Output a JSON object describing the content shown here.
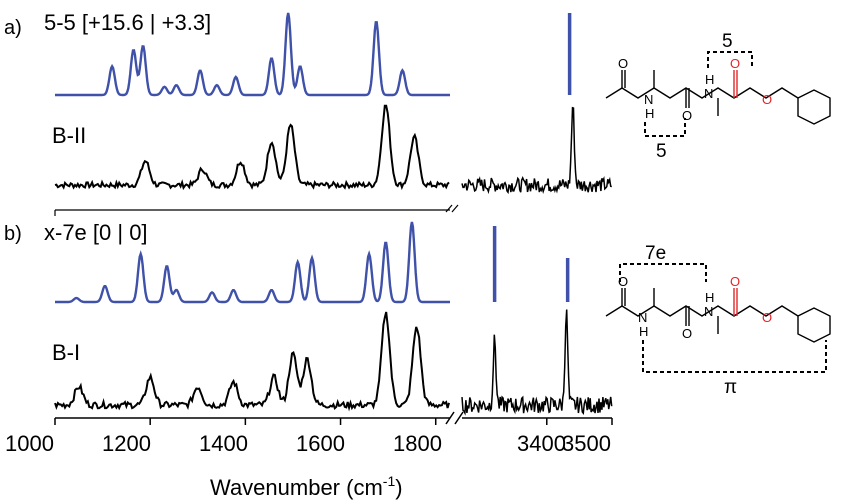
{
  "colors": {
    "calc": "#3f51a8",
    "exp": "#000000",
    "highlight": "#e0262b",
    "ink": "#000000"
  },
  "panels": [
    {
      "letter": "a)",
      "calc_label": "5-5 [+15.6 | +3.3]",
      "exp_label": "B-II",
      "bracket_label_top": "5",
      "bracket_label_bottom": "5"
    },
    {
      "letter": "b)",
      "calc_label": "x-7e [0 | 0]",
      "exp_label": "B-I",
      "bracket_label_top": "7e",
      "bracket_label_bottom": "π"
    }
  ],
  "axis": {
    "xlabel_main": "Wavenumber (cm",
    "xlabel_sup": "-1",
    "xlabel_end": ")",
    "left_ticks": [
      "1000",
      "1200",
      "1400",
      "1600",
      "1800"
    ],
    "right_ticks": [
      "3400",
      "3500"
    ]
  },
  "chart_data": [
    {
      "type": "line",
      "panel": "a",
      "x_range": [
        1000,
        1830
      ],
      "x_range_right": [
        3270,
        3500
      ],
      "series": [
        {
          "name": "5-5 [+15.6 | +3.3]",
          "kind": "stick",
          "peaks": [
            [
              1120,
              0.35
            ],
            [
              1165,
              0.55
            ],
            [
              1185,
              0.6
            ],
            [
              1230,
              0.1
            ],
            [
              1255,
              0.12
            ],
            [
              1305,
              0.3
            ],
            [
              1340,
              0.12
            ],
            [
              1380,
              0.22
            ],
            [
              1455,
              0.45
            ],
            [
              1490,
              1.0
            ],
            [
              1515,
              0.35
            ],
            [
              1675,
              0.9
            ],
            [
              1730,
              0.3
            ]
          ],
          "peaks_right": [
            [
              3435,
              1.0
            ]
          ]
        },
        {
          "name": "B-II",
          "kind": "experimental",
          "peaks": [
            [
              1190,
              0.3
            ],
            [
              1310,
              0.2
            ],
            [
              1390,
              0.3
            ],
            [
              1455,
              0.55
            ],
            [
              1495,
              0.75
            ],
            [
              1695,
              1.0
            ],
            [
              1755,
              0.6
            ]
          ],
          "peaks_right": [
            [
              3440,
              1.0
            ]
          ]
        }
      ]
    },
    {
      "type": "line",
      "panel": "b",
      "x_range": [
        1000,
        1830
      ],
      "x_range_right": [
        3270,
        3500
      ],
      "series": [
        {
          "name": "x-7e [0 | 0]",
          "kind": "stick",
          "peaks": [
            [
              1045,
              0.05
            ],
            [
              1105,
              0.2
            ],
            [
              1180,
              0.6
            ],
            [
              1235,
              0.45
            ],
            [
              1255,
              0.15
            ],
            [
              1330,
              0.12
            ],
            [
              1375,
              0.15
            ],
            [
              1455,
              0.15
            ],
            [
              1510,
              0.5
            ],
            [
              1540,
              0.55
            ],
            [
              1660,
              0.6
            ],
            [
              1695,
              0.75
            ],
            [
              1750,
              1.0
            ]
          ],
          "peaks_right": [
            [
              3320,
              0.95
            ],
            [
              3432,
              0.55
            ]
          ]
        },
        {
          "name": "B-I",
          "kind": "experimental",
          "peaks": [
            [
              1050,
              0.2
            ],
            [
              1200,
              0.3
            ],
            [
              1300,
              0.2
            ],
            [
              1375,
              0.25
            ],
            [
              1460,
              0.3
            ],
            [
              1500,
              0.55
            ],
            [
              1530,
              0.5
            ],
            [
              1695,
              1.0
            ],
            [
              1760,
              0.85
            ]
          ],
          "peaks_right": [
            [
              3320,
              0.7
            ],
            [
              3430,
              1.0
            ]
          ]
        }
      ]
    }
  ]
}
